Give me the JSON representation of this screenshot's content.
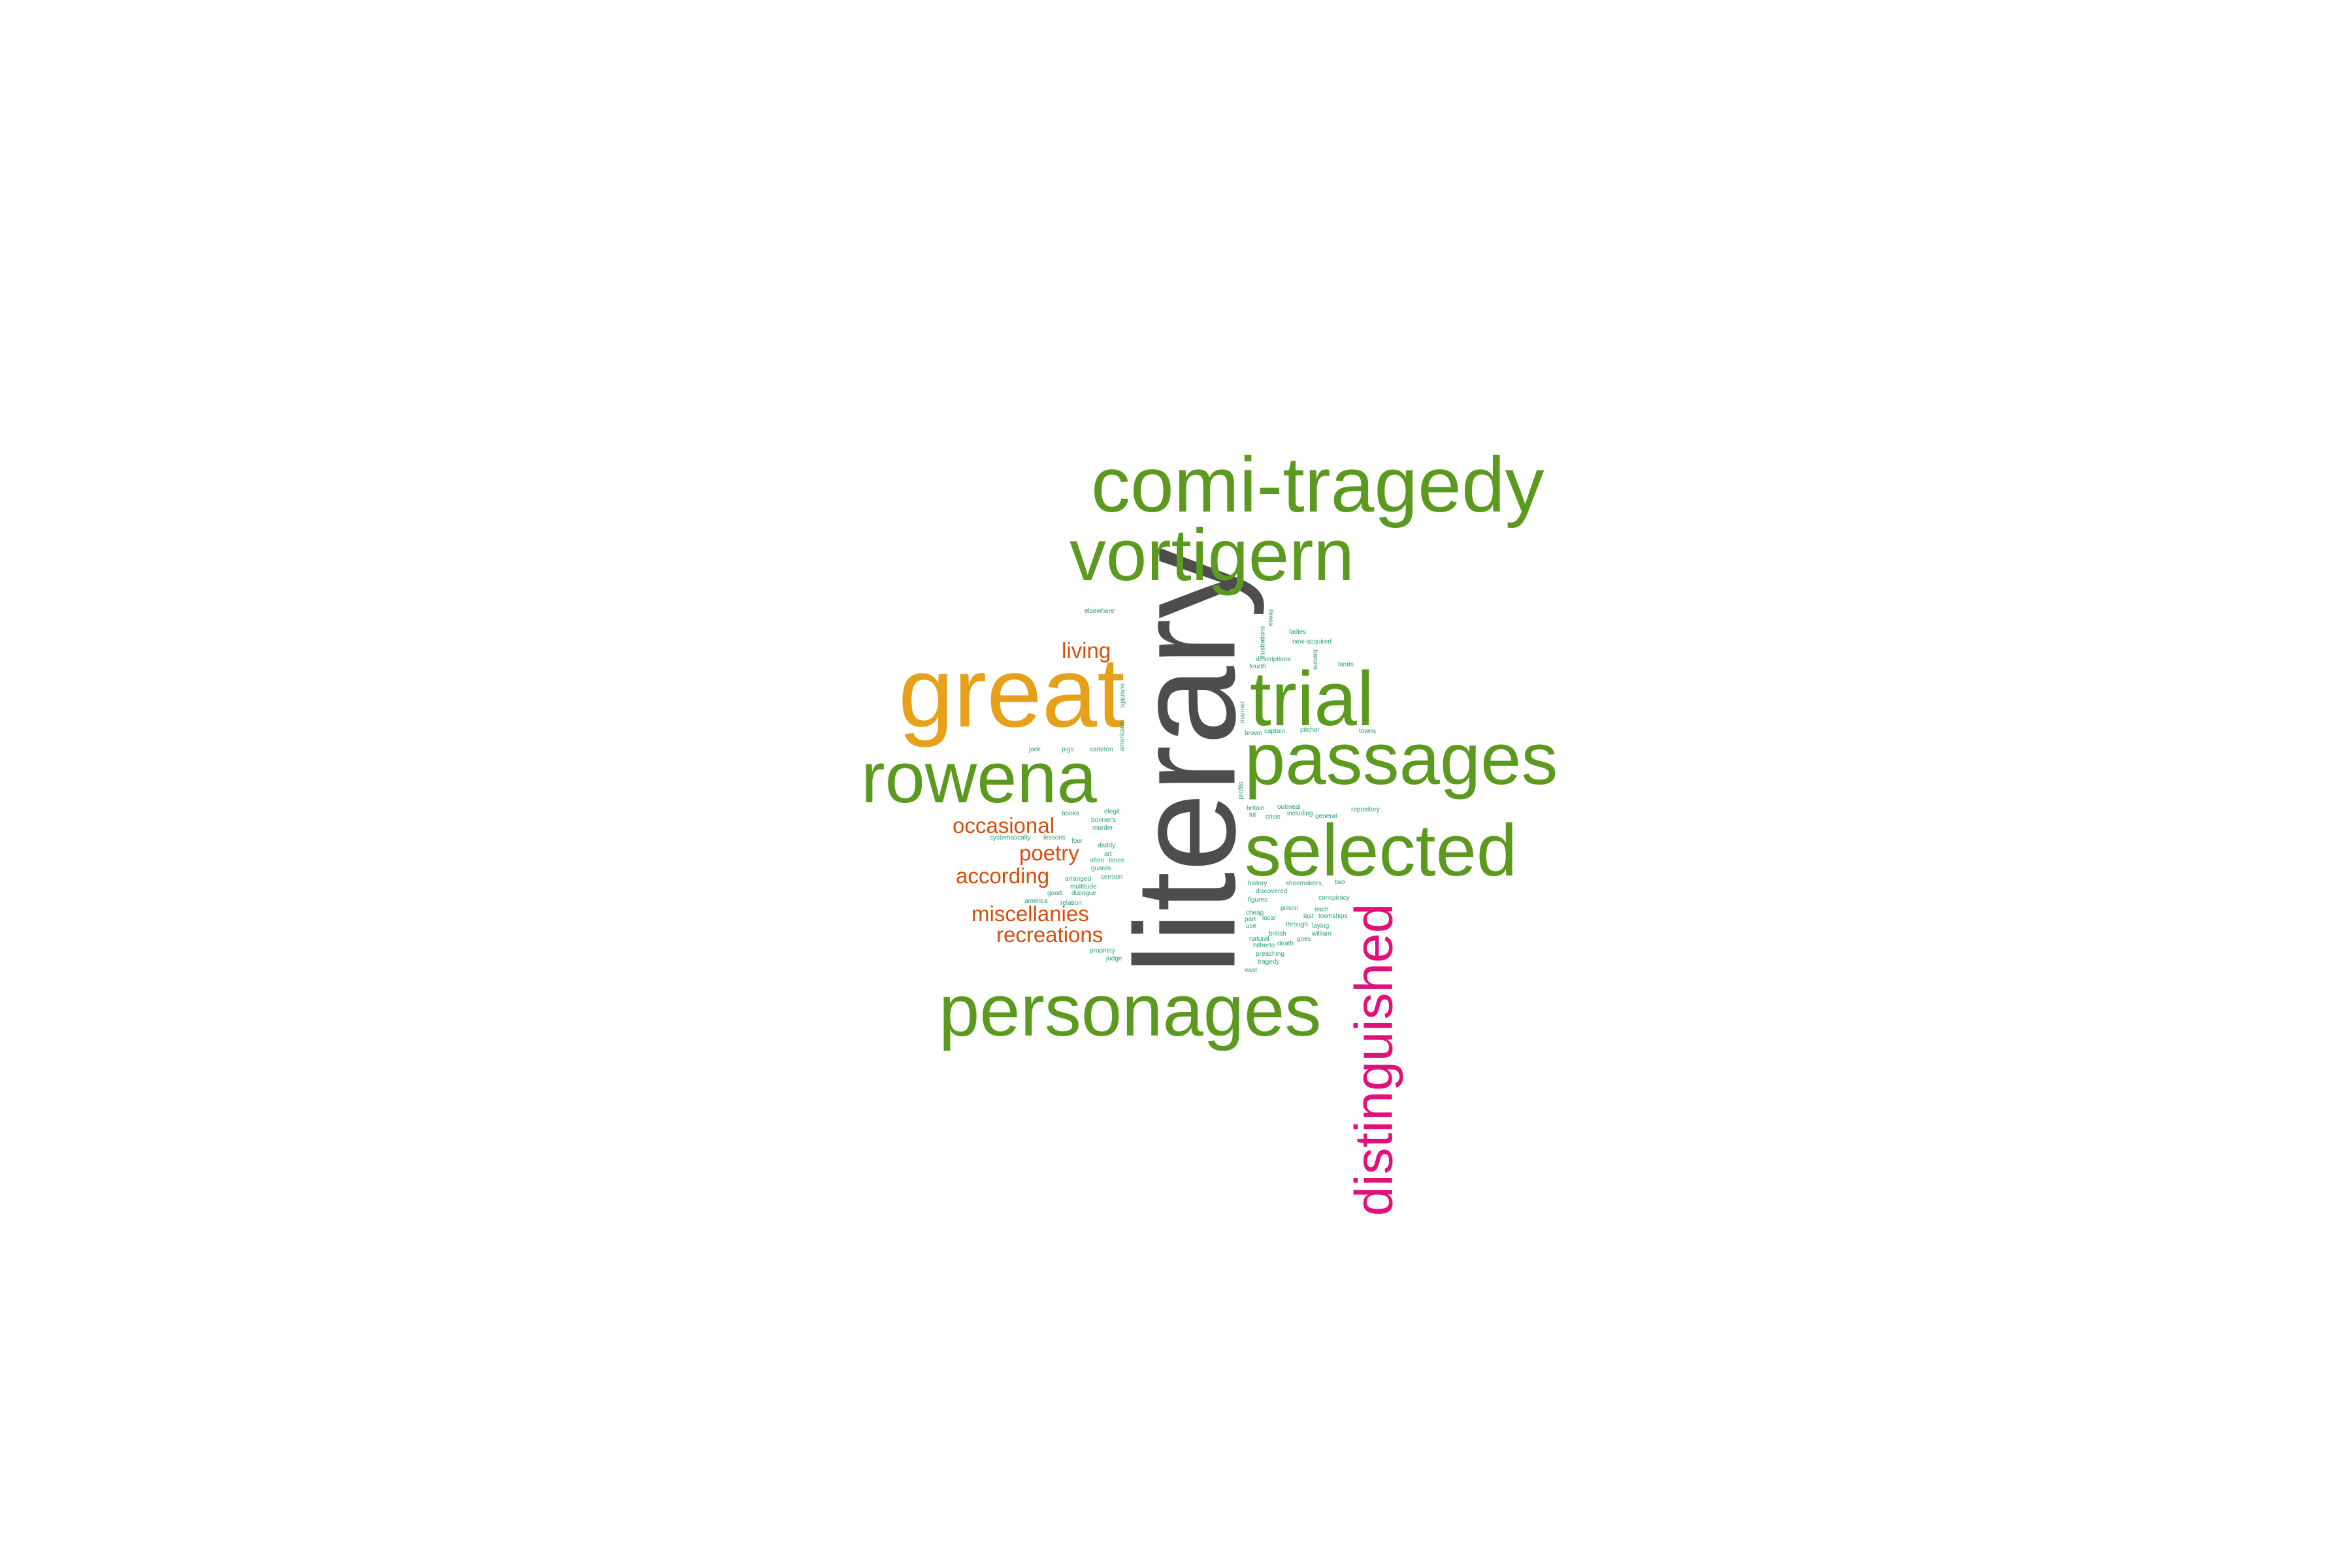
{
  "colors": {
    "dark_gray": "#4d4d4d",
    "gold": "#e6a019",
    "green": "#5b9a1e",
    "magenta": "#e0127a",
    "orange": "#d64f0c",
    "teal": "#2a9d7a"
  },
  "words": {
    "literary": {
      "text": "literary",
      "color": "dark_gray"
    },
    "comi_tragedy": {
      "text": "comi-tragedy",
      "color": "green"
    },
    "vortigern": {
      "text": "vortigern",
      "color": "green"
    },
    "great": {
      "text": "great",
      "color": "gold"
    },
    "trial": {
      "text": "trial",
      "color": "green"
    },
    "passages": {
      "text": "passages",
      "color": "green"
    },
    "rowena": {
      "text": "rowena",
      "color": "green"
    },
    "selected": {
      "text": "selected",
      "color": "green"
    },
    "personages": {
      "text": "personages",
      "color": "green"
    },
    "distinguished": {
      "text": "distinguished",
      "color": "magenta"
    },
    "living": {
      "text": "living",
      "color": "orange"
    },
    "occasional": {
      "text": "occasional",
      "color": "orange"
    },
    "poetry": {
      "text": "poetry",
      "color": "orange"
    },
    "according": {
      "text": "according",
      "color": "orange"
    },
    "miscellanies": {
      "text": "miscellanies",
      "color": "orange"
    },
    "recreations": {
      "text": "recreations",
      "color": "orange"
    },
    "elsewhere": {
      "text": "elsewhere",
      "color": "teal"
    },
    "jack": {
      "text": "jack",
      "color": "teal"
    },
    "pigs": {
      "text": "pigs",
      "color": "teal"
    },
    "carleton": {
      "text": "carleton",
      "color": "teal"
    },
    "scientific": {
      "text": "scientific",
      "color": "teal"
    },
    "americans": {
      "text": "americans",
      "color": "teal"
    },
    "ladies": {
      "text": "ladies",
      "color": "teal"
    },
    "new_acquired": {
      "text": "new-acquired",
      "color": "teal"
    },
    "lands": {
      "text": "lands",
      "color": "teal"
    },
    "descriptions": {
      "text": "descriptions",
      "color": "teal"
    },
    "fourth": {
      "text": "fourth",
      "color": "teal"
    },
    "essay": {
      "text": "essay",
      "color": "teal"
    },
    "illustrations": {
      "text": "illustrations",
      "color": "teal"
    },
    "barons": {
      "text": "barons",
      "color": "teal"
    },
    "manner": {
      "text": "manner",
      "color": "teal"
    },
    "brown": {
      "text": "brown",
      "color": "teal"
    },
    "captain": {
      "text": "captain",
      "color": "teal"
    },
    "pitcher": {
      "text": "pitcher",
      "color": "teal"
    },
    "towns": {
      "text": "towns",
      "color": "teal"
    },
    "profits": {
      "text": "profits",
      "color": "teal"
    },
    "britain": {
      "text": "britain",
      "color": "teal"
    },
    "outmeal": {
      "text": "outmeal",
      "color": "teal"
    },
    "repository": {
      "text": "repository",
      "color": "teal"
    },
    "lot": {
      "text": "lot",
      "color": "teal"
    },
    "crisis": {
      "text": "crisis",
      "color": "teal"
    },
    "including": {
      "text": "including",
      "color": "teal"
    },
    "general": {
      "text": "general",
      "color": "teal"
    },
    "books": {
      "text": "books",
      "color": "teal"
    },
    "elegit": {
      "text": "elegit",
      "color": "teal"
    },
    "bonner_s": {
      "text": "bonner's",
      "color": "teal"
    },
    "murder": {
      "text": "murder",
      "color": "teal"
    },
    "systematically": {
      "text": "systematically",
      "color": "teal"
    },
    "lessons": {
      "text": "lessons",
      "color": "teal"
    },
    "four": {
      "text": "four",
      "color": "teal"
    },
    "daddy": {
      "text": "daddy",
      "color": "teal"
    },
    "art": {
      "text": "art",
      "color": "teal"
    },
    "often": {
      "text": "often",
      "color": "teal"
    },
    "times": {
      "text": "times",
      "color": "teal"
    },
    "guards": {
      "text": "guards",
      "color": "teal"
    },
    "sermon": {
      "text": "sermon",
      "color": "teal"
    },
    "arranged": {
      "text": "arranged",
      "color": "teal"
    },
    "multitude": {
      "text": "multitude",
      "color": "teal"
    },
    "good": {
      "text": "good",
      "color": "teal"
    },
    "dialogue": {
      "text": "dialogue",
      "color": "teal"
    },
    "america": {
      "text": "america",
      "color": "teal"
    },
    "relation": {
      "text": "relation",
      "color": "teal"
    },
    "propriety": {
      "text": "propriety",
      "color": "teal"
    },
    "judge": {
      "text": "judge",
      "color": "teal"
    },
    "history": {
      "text": "history",
      "color": "teal"
    },
    "discovered": {
      "text": "discovered",
      "color": "teal"
    },
    "shoemakers": {
      "text": "shoemakers,",
      "color": "teal"
    },
    "two": {
      "text": "two",
      "color": "teal"
    },
    "conspiracy": {
      "text": "conspiracy",
      "color": "teal"
    },
    "figures": {
      "text": "figures",
      "color": "teal"
    },
    "cheap": {
      "text": "cheap",
      "color": "teal"
    },
    "prison": {
      "text": "prison",
      "color": "teal"
    },
    "each": {
      "text": "each",
      "color": "teal"
    },
    "part": {
      "text": "part",
      "color": "teal"
    },
    "local": {
      "text": "local",
      "color": "teal"
    },
    "last": {
      "text": "last",
      "color": "teal"
    },
    "townships": {
      "text": "townships",
      "color": "teal"
    },
    "use": {
      "text": "use",
      "color": "teal"
    },
    "through": {
      "text": "through",
      "color": "teal"
    },
    "laying": {
      "text": "laying",
      "color": "teal"
    },
    "british": {
      "text": "british",
      "color": "teal"
    },
    "william": {
      "text": "william",
      "color": "teal"
    },
    "natural": {
      "text": "natural",
      "color": "teal"
    },
    "goes": {
      "text": "goes",
      "color": "teal"
    },
    "hitherto": {
      "text": "hitherto",
      "color": "teal"
    },
    "death": {
      "text": "death",
      "color": "teal"
    },
    "preaching": {
      "text": "preaching",
      "color": "teal"
    },
    "tragedy": {
      "text": "tragedy",
      "color": "teal"
    },
    "east": {
      "text": "east",
      "color": "teal"
    }
  }
}
